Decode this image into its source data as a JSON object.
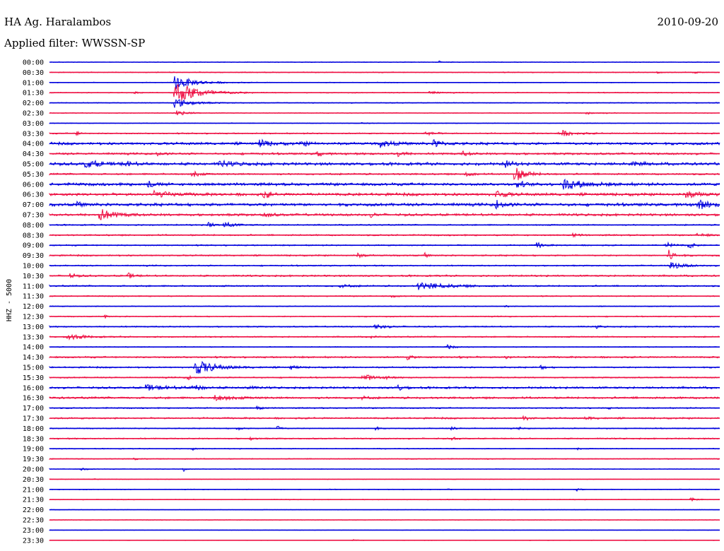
{
  "header": {
    "station": "HA Ag. Haralambos",
    "date": "2010-09-20",
    "filter_label": "Applied filter: WWSSN-SP"
  },
  "channel_label": "HHZ - 5000",
  "colors": {
    "even": "#0000dd",
    "odd": "#ee1144"
  },
  "chart_data": {
    "type": "line",
    "title": "HA Ag. Haralambos",
    "subtitle": "Applied filter: WWSSN-SP",
    "ylabel": "HHZ - 5000",
    "x_unit": "minutes within each 30-minute trace",
    "xlim": [
      0,
      30
    ],
    "grid": false,
    "traces": [
      {
        "label": "00:00",
        "noise": 0.08,
        "events": [
          {
            "t": 17.4,
            "amp": 0.5,
            "dur": 0.2
          }
        ]
      },
      {
        "label": "00:30",
        "noise": 0.1,
        "events": [
          {
            "t": 27.2,
            "amp": 0.3,
            "dur": 0.5
          },
          {
            "t": 28.8,
            "amp": 0.3,
            "dur": 0.4
          }
        ]
      },
      {
        "label": "01:00",
        "noise": 0.08,
        "events": [
          {
            "t": 5.6,
            "amp": 1.8,
            "dur": 1.8
          }
        ]
      },
      {
        "label": "01:30",
        "noise": 0.1,
        "events": [
          {
            "t": 5.6,
            "amp": 3.0,
            "dur": 2.2
          },
          {
            "t": 3.8,
            "amp": 0.3,
            "dur": 0.3
          },
          {
            "t": 17.0,
            "amp": 0.4,
            "dur": 0.8
          }
        ]
      },
      {
        "label": "02:00",
        "noise": 0.1,
        "events": [
          {
            "t": 5.6,
            "amp": 1.2,
            "dur": 1.5
          }
        ]
      },
      {
        "label": "02:30",
        "noise": 0.08,
        "events": [
          {
            "t": 5.6,
            "amp": 0.8,
            "dur": 1.0
          },
          {
            "t": 24.0,
            "amp": 0.3,
            "dur": 1.5
          }
        ]
      },
      {
        "label": "03:00",
        "noise": 0.08,
        "events": [
          {
            "t": 14.0,
            "amp": 0.2,
            "dur": 0.5
          }
        ]
      },
      {
        "label": "03:30",
        "noise": 0.14,
        "events": [
          {
            "t": 1.2,
            "amp": 0.7,
            "dur": 0.3
          },
          {
            "t": 16.8,
            "amp": 0.5,
            "dur": 0.8
          },
          {
            "t": 22.8,
            "amp": 0.9,
            "dur": 1.2
          }
        ]
      },
      {
        "label": "04:00",
        "noise": 0.28,
        "events": [
          {
            "t": 9.4,
            "amp": 0.9,
            "dur": 1.0
          },
          {
            "t": 11.3,
            "amp": 0.7,
            "dur": 0.5
          },
          {
            "t": 14.8,
            "amp": 0.8,
            "dur": 1.2
          },
          {
            "t": 17.2,
            "amp": 0.9,
            "dur": 0.8
          },
          {
            "t": 26.5,
            "amp": 0.6,
            "dur": 0.4
          }
        ]
      },
      {
        "label": "04:30",
        "noise": 0.22,
        "events": [
          {
            "t": 4.8,
            "amp": 0.6,
            "dur": 0.4
          },
          {
            "t": 12.0,
            "amp": 0.8,
            "dur": 0.4
          },
          {
            "t": 15.6,
            "amp": 0.9,
            "dur": 0.5
          },
          {
            "t": 18.5,
            "amp": 0.6,
            "dur": 0.6
          }
        ]
      },
      {
        "label": "05:00",
        "noise": 0.3,
        "events": [
          {
            "t": 1.6,
            "amp": 0.9,
            "dur": 1.6
          },
          {
            "t": 3.4,
            "amp": 0.6,
            "dur": 0.6
          },
          {
            "t": 7.6,
            "amp": 0.7,
            "dur": 1.5
          },
          {
            "t": 20.4,
            "amp": 0.9,
            "dur": 0.6
          },
          {
            "t": 26.0,
            "amp": 0.6,
            "dur": 0.8
          }
        ]
      },
      {
        "label": "05:30",
        "noise": 0.18,
        "events": [
          {
            "t": 6.4,
            "amp": 1.0,
            "dur": 0.5
          },
          {
            "t": 18.6,
            "amp": 0.8,
            "dur": 0.5
          },
          {
            "t": 20.8,
            "amp": 2.1,
            "dur": 1.0
          }
        ]
      },
      {
        "label": "06:00",
        "noise": 0.3,
        "events": [
          {
            "t": 4.4,
            "amp": 0.8,
            "dur": 0.6
          },
          {
            "t": 20.9,
            "amp": 1.0,
            "dur": 0.6
          },
          {
            "t": 23.0,
            "amp": 1.3,
            "dur": 2.0
          }
        ]
      },
      {
        "label": "06:30",
        "noise": 0.3,
        "events": [
          {
            "t": 4.6,
            "amp": 0.8,
            "dur": 1.5
          },
          {
            "t": 9.6,
            "amp": 1.2,
            "dur": 0.5
          },
          {
            "t": 20.0,
            "amp": 1.0,
            "dur": 0.8
          },
          {
            "t": 28.5,
            "amp": 0.8,
            "dur": 1.2
          }
        ]
      },
      {
        "label": "07:00",
        "noise": 0.32,
        "events": [
          {
            "t": 1.2,
            "amp": 0.6,
            "dur": 0.6
          },
          {
            "t": 20.0,
            "amp": 1.2,
            "dur": 0.6
          },
          {
            "t": 29.0,
            "amp": 1.2,
            "dur": 1.0
          }
        ]
      },
      {
        "label": "07:30",
        "noise": 0.26,
        "events": [
          {
            "t": 2.2,
            "amp": 1.6,
            "dur": 1.3
          },
          {
            "t": 9.6,
            "amp": 0.9,
            "dur": 0.5
          },
          {
            "t": 14.4,
            "amp": 0.6,
            "dur": 0.4
          }
        ]
      },
      {
        "label": "08:00",
        "noise": 0.14,
        "events": [
          {
            "t": 7.1,
            "amp": 0.9,
            "dur": 0.4
          },
          {
            "t": 7.8,
            "amp": 0.8,
            "dur": 0.9
          }
        ]
      },
      {
        "label": "08:30",
        "noise": 0.16,
        "events": [
          {
            "t": 23.4,
            "amp": 0.5,
            "dur": 0.6
          },
          {
            "t": 29.0,
            "amp": 0.4,
            "dur": 1.0
          }
        ]
      },
      {
        "label": "09:00",
        "noise": 0.14,
        "events": [
          {
            "t": 21.8,
            "amp": 0.9,
            "dur": 0.5
          },
          {
            "t": 27.6,
            "amp": 0.8,
            "dur": 0.6
          },
          {
            "t": 28.6,
            "amp": 1.0,
            "dur": 0.4
          }
        ]
      },
      {
        "label": "09:30",
        "noise": 0.16,
        "events": [
          {
            "t": 13.8,
            "amp": 0.5,
            "dur": 0.6
          },
          {
            "t": 16.8,
            "amp": 0.6,
            "dur": 0.3
          },
          {
            "t": 27.7,
            "amp": 1.5,
            "dur": 0.6
          }
        ]
      },
      {
        "label": "10:00",
        "noise": 0.14,
        "events": [
          {
            "t": 27.8,
            "amp": 0.9,
            "dur": 1.2
          }
        ]
      },
      {
        "label": "10:30",
        "noise": 0.18,
        "events": [
          {
            "t": 0.9,
            "amp": 0.6,
            "dur": 0.6
          },
          {
            "t": 3.5,
            "amp": 0.8,
            "dur": 0.5
          }
        ]
      },
      {
        "label": "11:00",
        "noise": 0.16,
        "events": [
          {
            "t": 16.5,
            "amp": 1.0,
            "dur": 2.5
          },
          {
            "t": 13.0,
            "amp": 0.4,
            "dur": 1.0
          }
        ]
      },
      {
        "label": "11:30",
        "noise": 0.12,
        "events": [
          {
            "t": 15.3,
            "amp": 0.3,
            "dur": 0.5
          }
        ]
      },
      {
        "label": "12:00",
        "noise": 0.1,
        "events": [
          {
            "t": 20.4,
            "amp": 0.3,
            "dur": 0.3
          }
        ]
      },
      {
        "label": "12:30",
        "noise": 0.12,
        "events": [
          {
            "t": 2.5,
            "amp": 0.6,
            "dur": 0.2
          }
        ]
      },
      {
        "label": "13:00",
        "noise": 0.14,
        "events": [
          {
            "t": 14.5,
            "amp": 0.8,
            "dur": 1.0
          },
          {
            "t": 24.5,
            "amp": 0.5,
            "dur": 0.3
          }
        ]
      },
      {
        "label": "13:30",
        "noise": 0.14,
        "events": [
          {
            "t": 0.8,
            "amp": 1.0,
            "dur": 1.2
          },
          {
            "t": 14.4,
            "amp": 0.3,
            "dur": 0.4
          }
        ]
      },
      {
        "label": "14:00",
        "noise": 0.1,
        "events": [
          {
            "t": 17.8,
            "amp": 0.6,
            "dur": 0.5
          }
        ]
      },
      {
        "label": "14:30",
        "noise": 0.18,
        "events": [
          {
            "t": 16.0,
            "amp": 0.6,
            "dur": 0.5
          },
          {
            "t": 18.2,
            "amp": 0.5,
            "dur": 0.5
          },
          {
            "t": 20.4,
            "amp": 0.6,
            "dur": 0.4
          }
        ]
      },
      {
        "label": "15:00",
        "noise": 0.16,
        "events": [
          {
            "t": 6.5,
            "amp": 2.0,
            "dur": 1.8
          },
          {
            "t": 10.8,
            "amp": 0.6,
            "dur": 0.5
          },
          {
            "t": 22.0,
            "amp": 0.6,
            "dur": 0.4
          }
        ]
      },
      {
        "label": "15:30",
        "noise": 0.14,
        "events": [
          {
            "t": 6.2,
            "amp": 0.6,
            "dur": 0.3
          },
          {
            "t": 14.0,
            "amp": 1.0,
            "dur": 1.0
          },
          {
            "t": 15.1,
            "amp": 0.5,
            "dur": 0.3
          }
        ]
      },
      {
        "label": "16:00",
        "noise": 0.22,
        "events": [
          {
            "t": 4.2,
            "amp": 0.8,
            "dur": 2.0
          },
          {
            "t": 6.4,
            "amp": 0.8,
            "dur": 0.8
          },
          {
            "t": 8.8,
            "amp": 0.6,
            "dur": 0.5
          },
          {
            "t": 15.6,
            "amp": 0.9,
            "dur": 0.5
          }
        ]
      },
      {
        "label": "16:30",
        "noise": 0.22,
        "events": [
          {
            "t": 7.4,
            "amp": 0.7,
            "dur": 1.4
          },
          {
            "t": 14.0,
            "amp": 0.4,
            "dur": 0.5
          }
        ]
      },
      {
        "label": "17:00",
        "noise": 0.14,
        "events": [
          {
            "t": 9.3,
            "amp": 0.6,
            "dur": 0.4
          },
          {
            "t": 25.0,
            "amp": 0.3,
            "dur": 0.2
          }
        ]
      },
      {
        "label": "17:30",
        "noise": 0.18,
        "events": [
          {
            "t": 21.2,
            "amp": 0.6,
            "dur": 0.5
          },
          {
            "t": 24.0,
            "amp": 0.4,
            "dur": 0.6
          }
        ]
      },
      {
        "label": "18:00",
        "noise": 0.12,
        "events": [
          {
            "t": 8.4,
            "amp": 0.6,
            "dur": 0.3
          },
          {
            "t": 10.2,
            "amp": 0.8,
            "dur": 0.3
          },
          {
            "t": 14.6,
            "amp": 0.7,
            "dur": 0.2
          },
          {
            "t": 18.0,
            "amp": 0.5,
            "dur": 0.3
          },
          {
            "t": 21.0,
            "amp": 0.3,
            "dur": 0.3
          }
        ]
      },
      {
        "label": "18:30",
        "noise": 0.14,
        "events": [
          {
            "t": 9.0,
            "amp": 0.4,
            "dur": 0.4
          },
          {
            "t": 18.0,
            "amp": 0.3,
            "dur": 0.5
          }
        ]
      },
      {
        "label": "19:00",
        "noise": 0.1,
        "events": [
          {
            "t": 6.4,
            "amp": 0.4,
            "dur": 0.3
          },
          {
            "t": 23.6,
            "amp": 0.3,
            "dur": 0.3
          }
        ]
      },
      {
        "label": "19:30",
        "noise": 0.1,
        "events": [
          {
            "t": 3.8,
            "amp": 0.3,
            "dur": 0.4
          }
        ]
      },
      {
        "label": "20:00",
        "noise": 0.08,
        "events": [
          {
            "t": 1.4,
            "amp": 0.4,
            "dur": 0.5
          },
          {
            "t": 6.0,
            "amp": 0.6,
            "dur": 0.2
          }
        ]
      },
      {
        "label": "20:30",
        "noise": 0.06,
        "events": [
          {
            "t": 2.0,
            "amp": 0.3,
            "dur": 0.2
          }
        ]
      },
      {
        "label": "21:00",
        "noise": 0.08,
        "events": [
          {
            "t": 17.8,
            "amp": 0.3,
            "dur": 0.2
          },
          {
            "t": 23.6,
            "amp": 0.4,
            "dur": 0.3
          }
        ]
      },
      {
        "label": "21:30",
        "noise": 0.08,
        "events": [
          {
            "t": 28.7,
            "amp": 0.6,
            "dur": 0.4
          }
        ]
      },
      {
        "label": "22:00",
        "noise": 0.06,
        "events": []
      },
      {
        "label": "22:30",
        "noise": 0.06,
        "events": []
      },
      {
        "label": "23:00",
        "noise": 0.05,
        "events": []
      },
      {
        "label": "23:30",
        "noise": 0.06,
        "events": [
          {
            "t": 13.6,
            "amp": 0.4,
            "dur": 0.3
          }
        ]
      }
    ]
  }
}
